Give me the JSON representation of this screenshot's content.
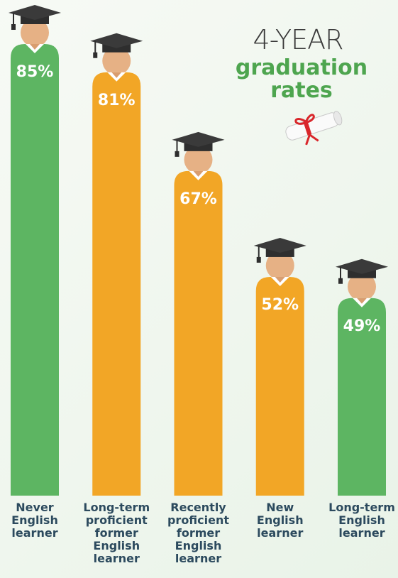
{
  "chart_data": {
    "type": "bar",
    "title": "4-YEAR",
    "subtitle": "graduation rates",
    "categories": [
      "Never English learner",
      "Long-term proficient former English learner",
      "Recently proficient former English learner",
      "New English learner",
      "Long-term English learner"
    ],
    "values": [
      85,
      81,
      67,
      52,
      49
    ],
    "value_labels": [
      "85%",
      "81%",
      "67%",
      "52%",
      "49%"
    ],
    "colors": [
      "#5db562",
      "#f2a626",
      "#f2a626",
      "#f2a626",
      "#5db562"
    ],
    "ylim": [
      21,
      85
    ]
  }
}
